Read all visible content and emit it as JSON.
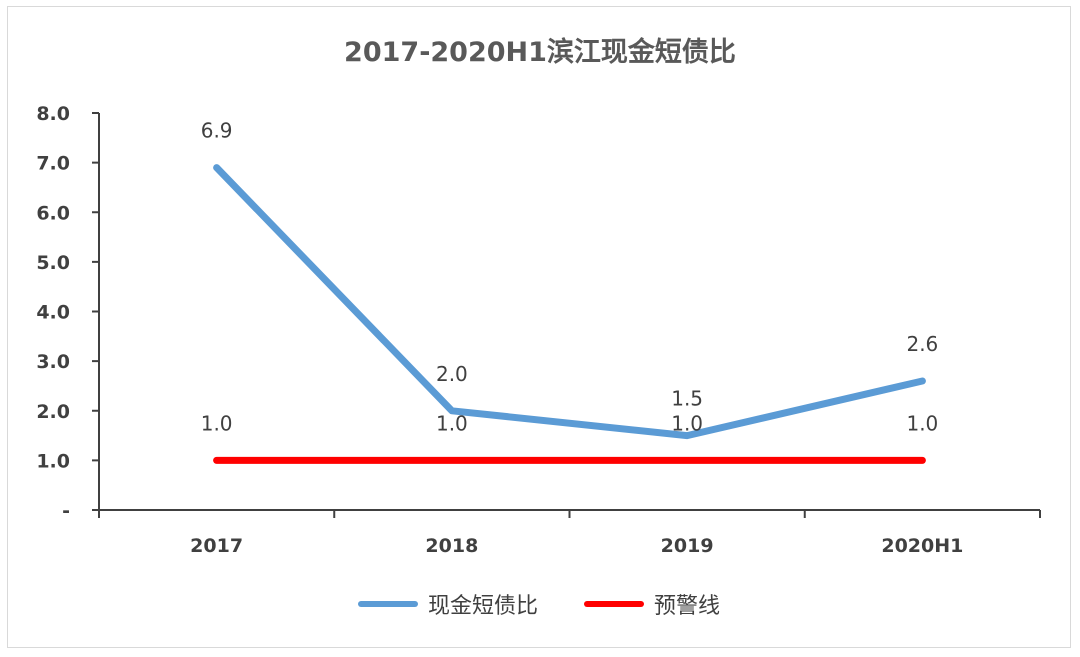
{
  "chart_data": {
    "type": "line",
    "title": "2017-2020H1滨江现金短债比",
    "categories": [
      "2017",
      "2018",
      "2019",
      "2020H1"
    ],
    "y_tick_labels": [
      "-",
      "1.0",
      "2.0",
      "3.0",
      "4.0",
      "5.0",
      "6.0",
      "7.0",
      "8.0"
    ],
    "ylim": [
      0,
      8
    ],
    "grid": false,
    "legend_position": "bottom",
    "series": [
      {
        "name": "现金短债比",
        "values": [
          6.9,
          2.0,
          1.5,
          2.6
        ],
        "labels": [
          "6.9",
          "2.0",
          "1.5",
          "2.6"
        ],
        "color": "#5b9bd5"
      },
      {
        "name": "预警线",
        "values": [
          1.0,
          1.0,
          1.0,
          1.0
        ],
        "labels": [
          "1.0",
          "1.0",
          "1.0",
          "1.0"
        ],
        "color": "#ff0000"
      }
    ]
  }
}
